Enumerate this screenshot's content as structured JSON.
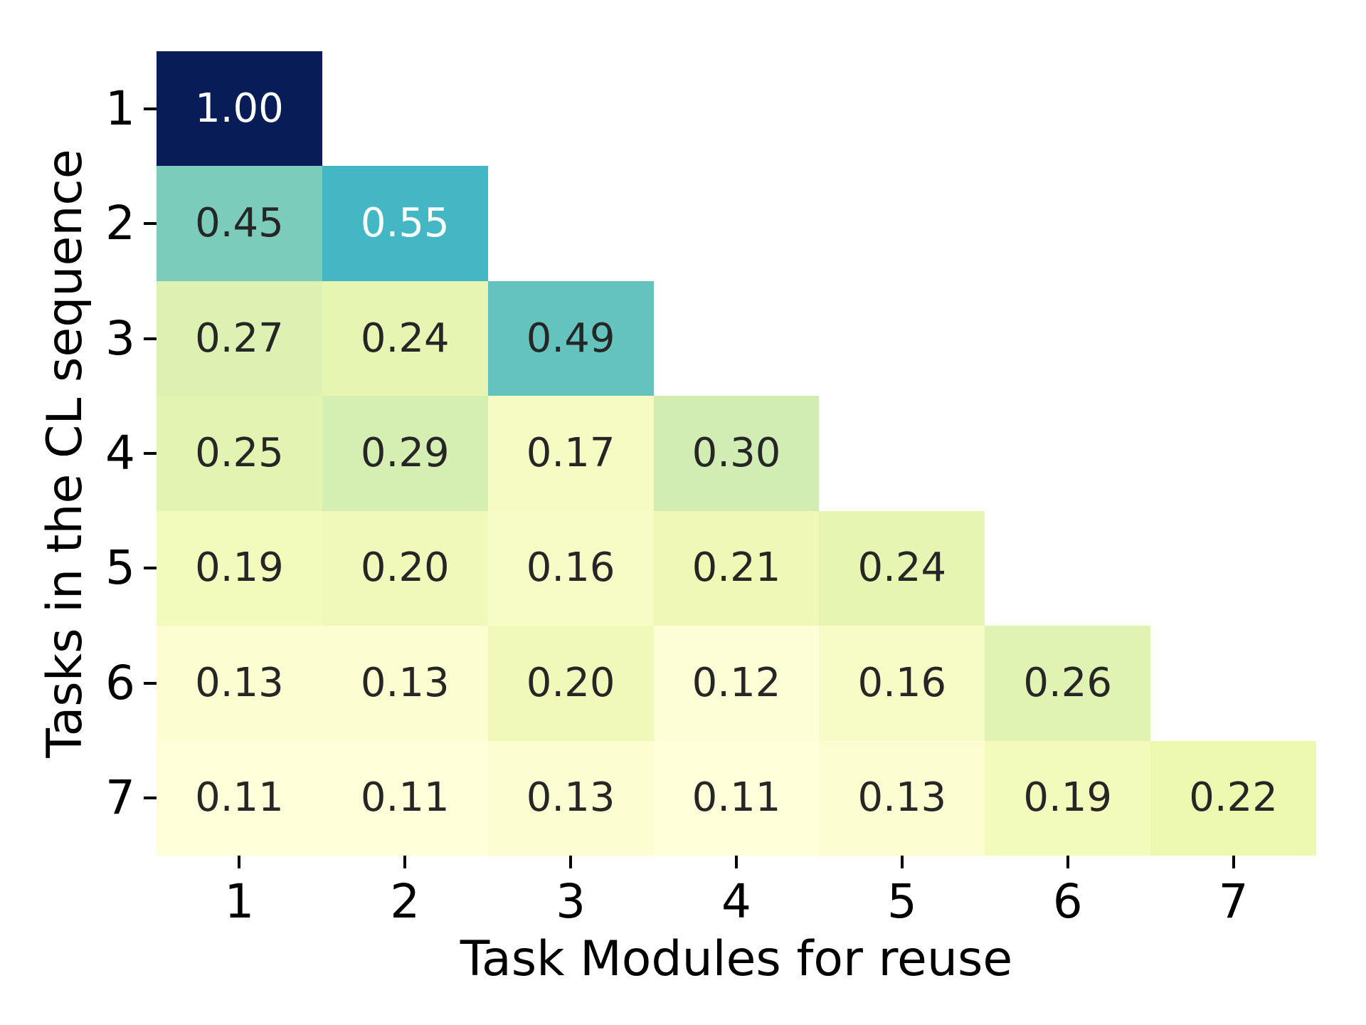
{
  "figure": {
    "background_color": "#ffffff",
    "annotation_text_dark": "#262626",
    "annotation_text_light": "#ffffff",
    "tick_color": "#000000"
  },
  "chart_data": {
    "type": "heatmap",
    "title": "",
    "xlabel": "Task Modules for reuse",
    "ylabel": "Tasks in the CL sequence",
    "x_tick_labels": [
      "1",
      "2",
      "3",
      "4",
      "5",
      "6",
      "7"
    ],
    "y_tick_labels": [
      "1",
      "2",
      "3",
      "4",
      "5",
      "6",
      "7"
    ],
    "colormap": "YlGnBu",
    "vmin": 0.11,
    "vmax": 1.0,
    "layout": "lower-triangular matrix, upper triangle masked (white), no gridlines, no colorbar",
    "values": [
      [
        1.0
      ],
      [
        0.45,
        0.55
      ],
      [
        0.27,
        0.24,
        0.49
      ],
      [
        0.25,
        0.29,
        0.17,
        0.3
      ],
      [
        0.19,
        0.2,
        0.16,
        0.21,
        0.24
      ],
      [
        0.13,
        0.13,
        0.2,
        0.12,
        0.16,
        0.26
      ],
      [
        0.11,
        0.11,
        0.13,
        0.11,
        0.13,
        0.19,
        0.22
      ]
    ],
    "value_labels": [
      [
        "1.00"
      ],
      [
        "0.45",
        "0.55"
      ],
      [
        "0.27",
        "0.24",
        "0.49"
      ],
      [
        "0.25",
        "0.29",
        "0.17",
        "0.30"
      ],
      [
        "0.19",
        "0.20",
        "0.16",
        "0.21",
        "0.24"
      ],
      [
        "0.13",
        "0.13",
        "0.20",
        "0.12",
        "0.16",
        "0.26"
      ],
      [
        "0.11",
        "0.11",
        "0.13",
        "0.11",
        "0.13",
        "0.19",
        "0.22"
      ]
    ],
    "cell_colors": [
      [
        "#081d58"
      ],
      [
        "#7cccbb",
        "#44b7c4"
      ],
      [
        "#dcf1b2",
        "#e7f5b2",
        "#65c3be"
      ],
      [
        "#e3f4b2",
        "#d5efb3",
        "#f5fbc3",
        "#d2edb3"
      ],
      [
        "#f2fabc",
        "#f0f9b9",
        "#f7fcc7",
        "#eff9b5",
        "#e7f5b2"
      ],
      [
        "#fcfed2",
        "#fcfed2",
        "#f0f9b9",
        "#fdfed5",
        "#f7fcc7",
        "#e0f3b2"
      ],
      [
        "#ffffd9",
        "#ffffd9",
        "#fcfed2",
        "#ffffd9",
        "#fcfed2",
        "#f2fabc",
        "#edf8b1"
      ]
    ],
    "text_colors": [
      [
        "#ffffff"
      ],
      [
        "#262626",
        "#ffffff"
      ],
      [
        "#262626",
        "#262626",
        "#262626"
      ],
      [
        "#262626",
        "#262626",
        "#262626",
        "#262626"
      ],
      [
        "#262626",
        "#262626",
        "#262626",
        "#262626",
        "#262626"
      ],
      [
        "#262626",
        "#262626",
        "#262626",
        "#262626",
        "#262626",
        "#262626"
      ],
      [
        "#262626",
        "#262626",
        "#262626",
        "#262626",
        "#262626",
        "#262626",
        "#262626"
      ]
    ]
  }
}
